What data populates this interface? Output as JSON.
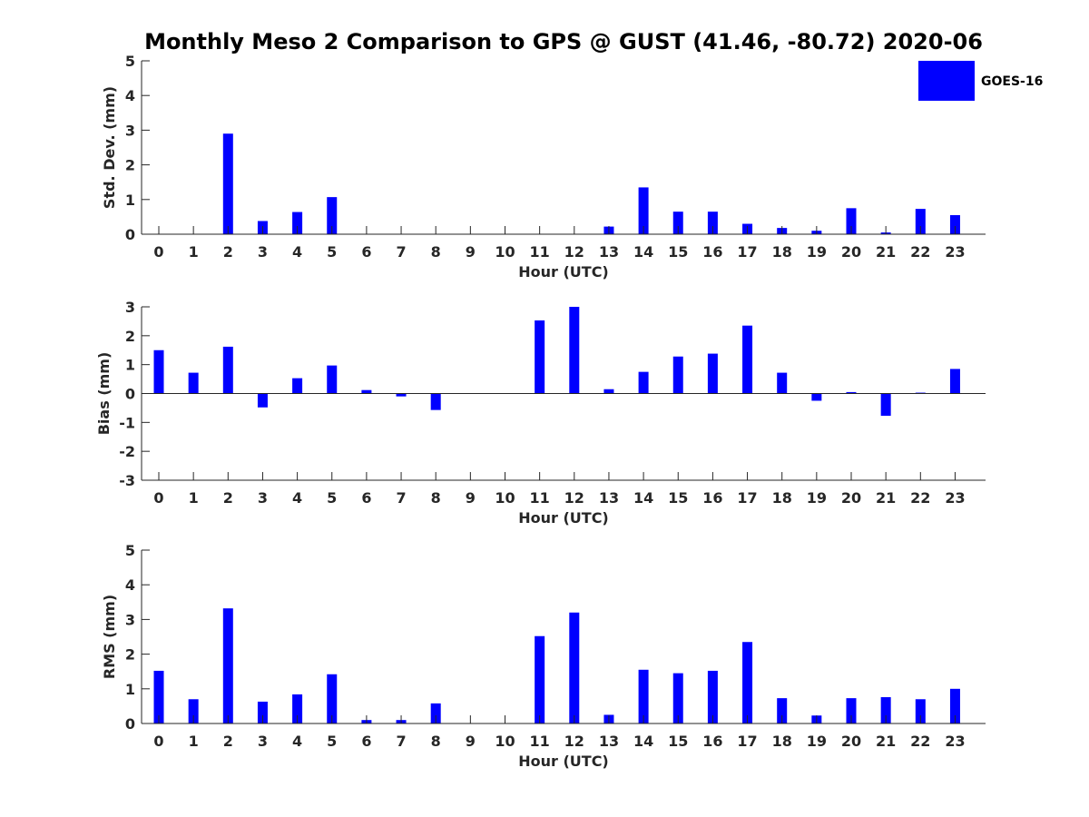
{
  "title": "Monthly Meso 2 Comparison to GPS @ GUST (41.46, -80.72) 2020-06",
  "colors": {
    "bar": "#0000ff",
    "axis": "#262626",
    "title": "#000000"
  },
  "legend": {
    "label": "GOES-16",
    "position": "top-right"
  },
  "chart_data": [
    {
      "type": "bar",
      "ylabel": "Std. Dev. (mm)",
      "xlabel": "Hour (UTC)",
      "ylim": [
        0,
        5
      ],
      "yticks": [
        0,
        1,
        2,
        3,
        4,
        5
      ],
      "categories": [
        "0",
        "1",
        "2",
        "3",
        "4",
        "5",
        "6",
        "7",
        "8",
        "9",
        "10",
        "11",
        "12",
        "13",
        "14",
        "15",
        "16",
        "17",
        "18",
        "19",
        "20",
        "21",
        "22",
        "23"
      ],
      "series": [
        {
          "name": "GOES-16",
          "values": [
            0,
            0,
            2.9,
            0.38,
            0.64,
            1.07,
            0,
            0,
            0,
            0,
            0,
            0,
            0,
            0.22,
            1.35,
            0.65,
            0.65,
            0.3,
            0.18,
            0.1,
            0.75,
            0.05,
            0.73,
            0.55
          ]
        }
      ]
    },
    {
      "type": "bar",
      "ylabel": "Bias (mm)",
      "xlabel": "Hour (UTC)",
      "ylim": [
        -3,
        3
      ],
      "yticks": [
        -3,
        -2,
        -1,
        0,
        1,
        2,
        3
      ],
      "categories": [
        "0",
        "1",
        "2",
        "3",
        "4",
        "5",
        "6",
        "7",
        "8",
        "9",
        "10",
        "11",
        "12",
        "13",
        "14",
        "15",
        "16",
        "17",
        "18",
        "19",
        "20",
        "21",
        "22",
        "23"
      ],
      "series": [
        {
          "name": "GOES-16",
          "values": [
            1.5,
            0.72,
            1.62,
            -0.48,
            0.53,
            0.97,
            0.12,
            -0.1,
            -0.57,
            0,
            0,
            2.53,
            3.0,
            0.15,
            0.75,
            1.28,
            1.38,
            2.35,
            0.72,
            -0.25,
            0.05,
            -0.77,
            0.03,
            0.85
          ]
        }
      ]
    },
    {
      "type": "bar",
      "ylabel": "RMS (mm)",
      "xlabel": "Hour (UTC)",
      "ylim": [
        0,
        5
      ],
      "yticks": [
        0,
        1,
        2,
        3,
        4,
        5
      ],
      "categories": [
        "0",
        "1",
        "2",
        "3",
        "4",
        "5",
        "6",
        "7",
        "8",
        "9",
        "10",
        "11",
        "12",
        "13",
        "14",
        "15",
        "16",
        "17",
        "18",
        "19",
        "20",
        "21",
        "22",
        "23"
      ],
      "series": [
        {
          "name": "GOES-16",
          "values": [
            1.52,
            0.7,
            3.32,
            0.63,
            0.84,
            1.42,
            0.1,
            0.1,
            0.58,
            0,
            0,
            2.52,
            3.2,
            0.25,
            1.55,
            1.45,
            1.52,
            2.35,
            0.73,
            0.23,
            0.73,
            0.76,
            0.7,
            1.0
          ]
        }
      ]
    }
  ]
}
